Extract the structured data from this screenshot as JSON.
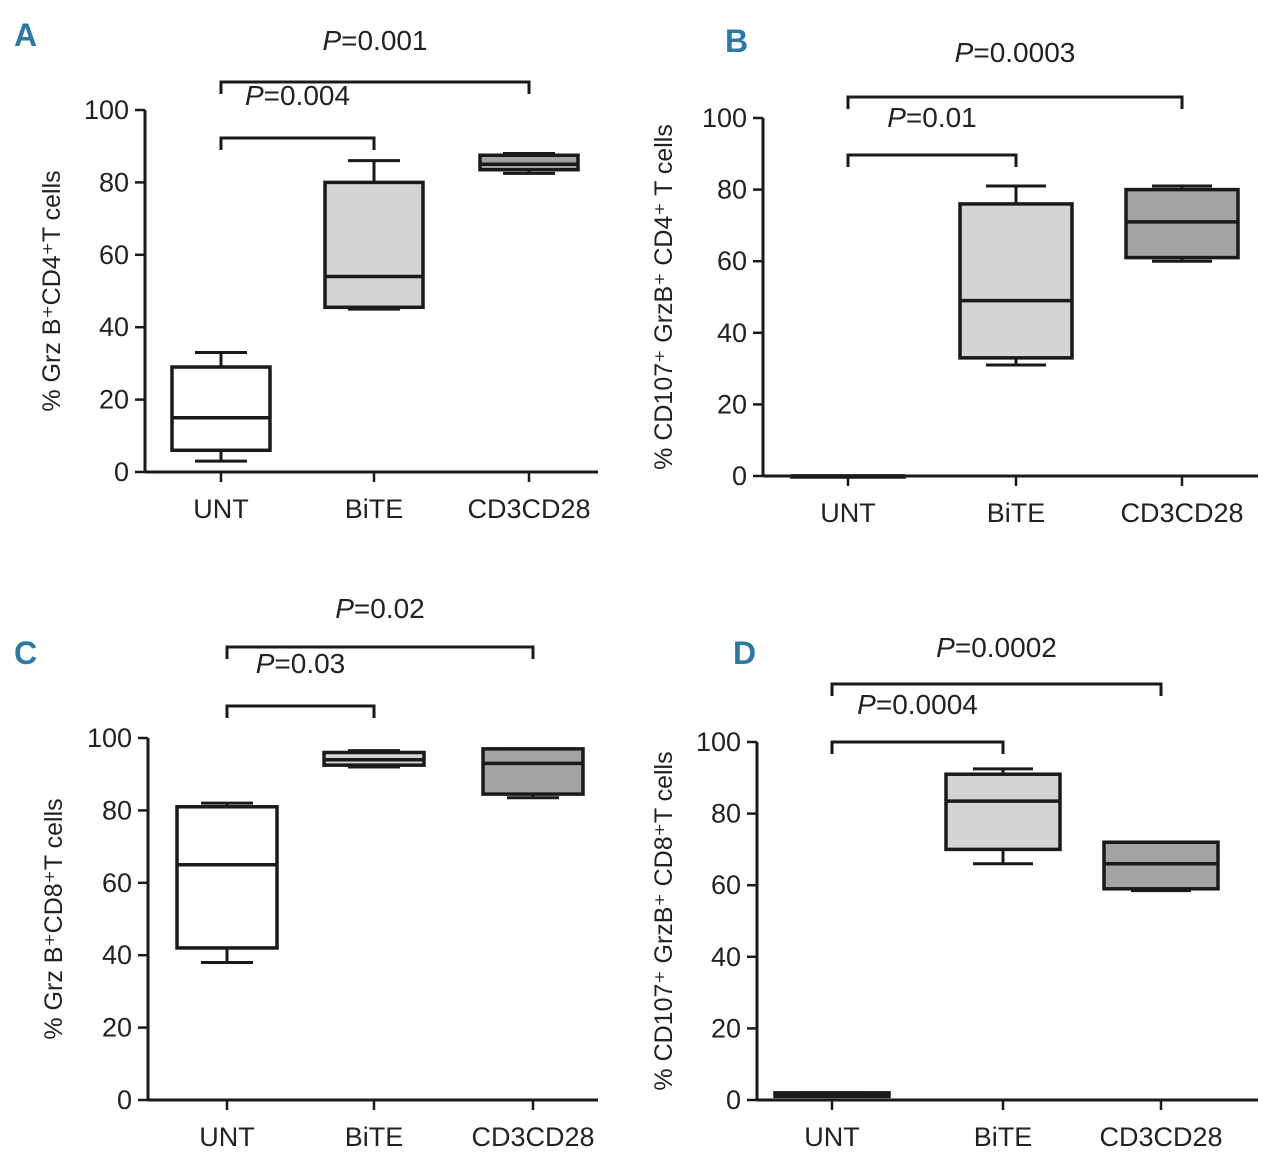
{
  "figure": {
    "colors": {
      "ink": "#1a1a1a",
      "panel_letter": "#2a79a6",
      "unt_box": "#ffffff",
      "bite_box": "#d4d4d4",
      "cd3cd28_box": "#a3a3a3"
    }
  },
  "chart_data": [
    {
      "id": "A",
      "type": "box",
      "panel_label": "A",
      "ylabel": "% Grz B⁺CD4⁺T cells",
      "ylim": [
        0,
        100
      ],
      "yticks": [
        "0",
        "20",
        "40",
        "60",
        "80",
        "100"
      ],
      "categories": [
        "UNT",
        "BiTE",
        "CD3CD28"
      ],
      "boxes": [
        {
          "category": "UNT",
          "min": 3,
          "q1": 6,
          "median": 15,
          "q3": 29,
          "max": 33
        },
        {
          "category": "BiTE",
          "min": 45,
          "q1": 45.5,
          "median": 54,
          "q3": 80,
          "max": 86
        },
        {
          "category": "CD3CD28",
          "min": 82.5,
          "q1": 83.5,
          "median": 85,
          "q3": 87.5,
          "max": 88
        }
      ],
      "brackets": [
        {
          "from": "UNT",
          "to": "BiTE",
          "label": "P=0.004",
          "p_letter": "P",
          "p_value": "=0.004"
        },
        {
          "from": "UNT",
          "to": "CD3CD28",
          "label": "P=0.001",
          "p_letter": "P",
          "p_value": "=0.001"
        }
      ]
    },
    {
      "id": "B",
      "type": "box",
      "panel_label": "B",
      "ylabel": "% CD107⁺ GrzB⁺ CD4⁺ T cells",
      "ylim": [
        0,
        100
      ],
      "yticks": [
        "0",
        "20",
        "40",
        "60",
        "80",
        "100"
      ],
      "categories": [
        "UNT",
        "BiTE",
        "CD3CD28"
      ],
      "boxes": [
        {
          "category": "UNT",
          "min": 0,
          "q1": 0,
          "median": 0,
          "q3": 0,
          "max": 0
        },
        {
          "category": "BiTE",
          "min": 31,
          "q1": 33,
          "median": 49,
          "q3": 76,
          "max": 81
        },
        {
          "category": "CD3CD28",
          "min": 60,
          "q1": 61,
          "median": 71,
          "q3": 80,
          "max": 81
        }
      ],
      "brackets": [
        {
          "from": "UNT",
          "to": "BiTE",
          "label": "P=0.01",
          "p_letter": "P",
          "p_value": "=0.01"
        },
        {
          "from": "UNT",
          "to": "CD3CD28",
          "label": "P=0.0003",
          "p_letter": "P",
          "p_value": "=0.0003"
        }
      ]
    },
    {
      "id": "C",
      "type": "box",
      "panel_label": "C",
      "ylabel": "% Grz B⁺CD8⁺T cells",
      "ylim": [
        0,
        100
      ],
      "yticks": [
        "0",
        "20",
        "40",
        "60",
        "80",
        "100"
      ],
      "categories": [
        "UNT",
        "BiTE",
        "CD3CD28"
      ],
      "boxes": [
        {
          "category": "UNT",
          "min": 38,
          "q1": 42,
          "median": 65,
          "q3": 81,
          "max": 82
        },
        {
          "category": "BiTE",
          "min": 92,
          "q1": 92.5,
          "median": 94,
          "q3": 96,
          "max": 96.5
        },
        {
          "category": "CD3CD28",
          "min": 83.5,
          "q1": 84.5,
          "median": 93,
          "q3": 97,
          "max": 97
        }
      ],
      "brackets": [
        {
          "from": "UNT",
          "to": "BiTE",
          "label": "P=0.03",
          "p_letter": "P",
          "p_value": "=0.03"
        },
        {
          "from": "UNT",
          "to": "CD3CD28",
          "label": "P=0.02",
          "p_letter": "P",
          "p_value": "=0.02"
        }
      ]
    },
    {
      "id": "D",
      "type": "box",
      "panel_label": "D",
      "ylabel": "% CD107⁺ GrzB⁺ CD8⁺T cells",
      "ylim": [
        0,
        100
      ],
      "yticks": [
        "0",
        "20",
        "40",
        "60",
        "80",
        "100"
      ],
      "categories": [
        "UNT",
        "BiTE",
        "CD3CD28"
      ],
      "boxes": [
        {
          "category": "UNT",
          "min": 1,
          "q1": 1,
          "median": 1.5,
          "q3": 2,
          "max": 2
        },
        {
          "category": "BiTE",
          "min": 66,
          "q1": 70,
          "median": 83.5,
          "q3": 91,
          "max": 92.5
        },
        {
          "category": "CD3CD28",
          "min": 58.5,
          "q1": 59,
          "median": 66,
          "q3": 72,
          "max": 72
        }
      ],
      "brackets": [
        {
          "from": "UNT",
          "to": "BiTE",
          "label": "P=0.0004",
          "p_letter": "P",
          "p_value": "=0.0004"
        },
        {
          "from": "UNT",
          "to": "CD3CD28",
          "label": "P=0.0002",
          "p_letter": "P",
          "p_value": "=0.0002"
        }
      ]
    }
  ]
}
